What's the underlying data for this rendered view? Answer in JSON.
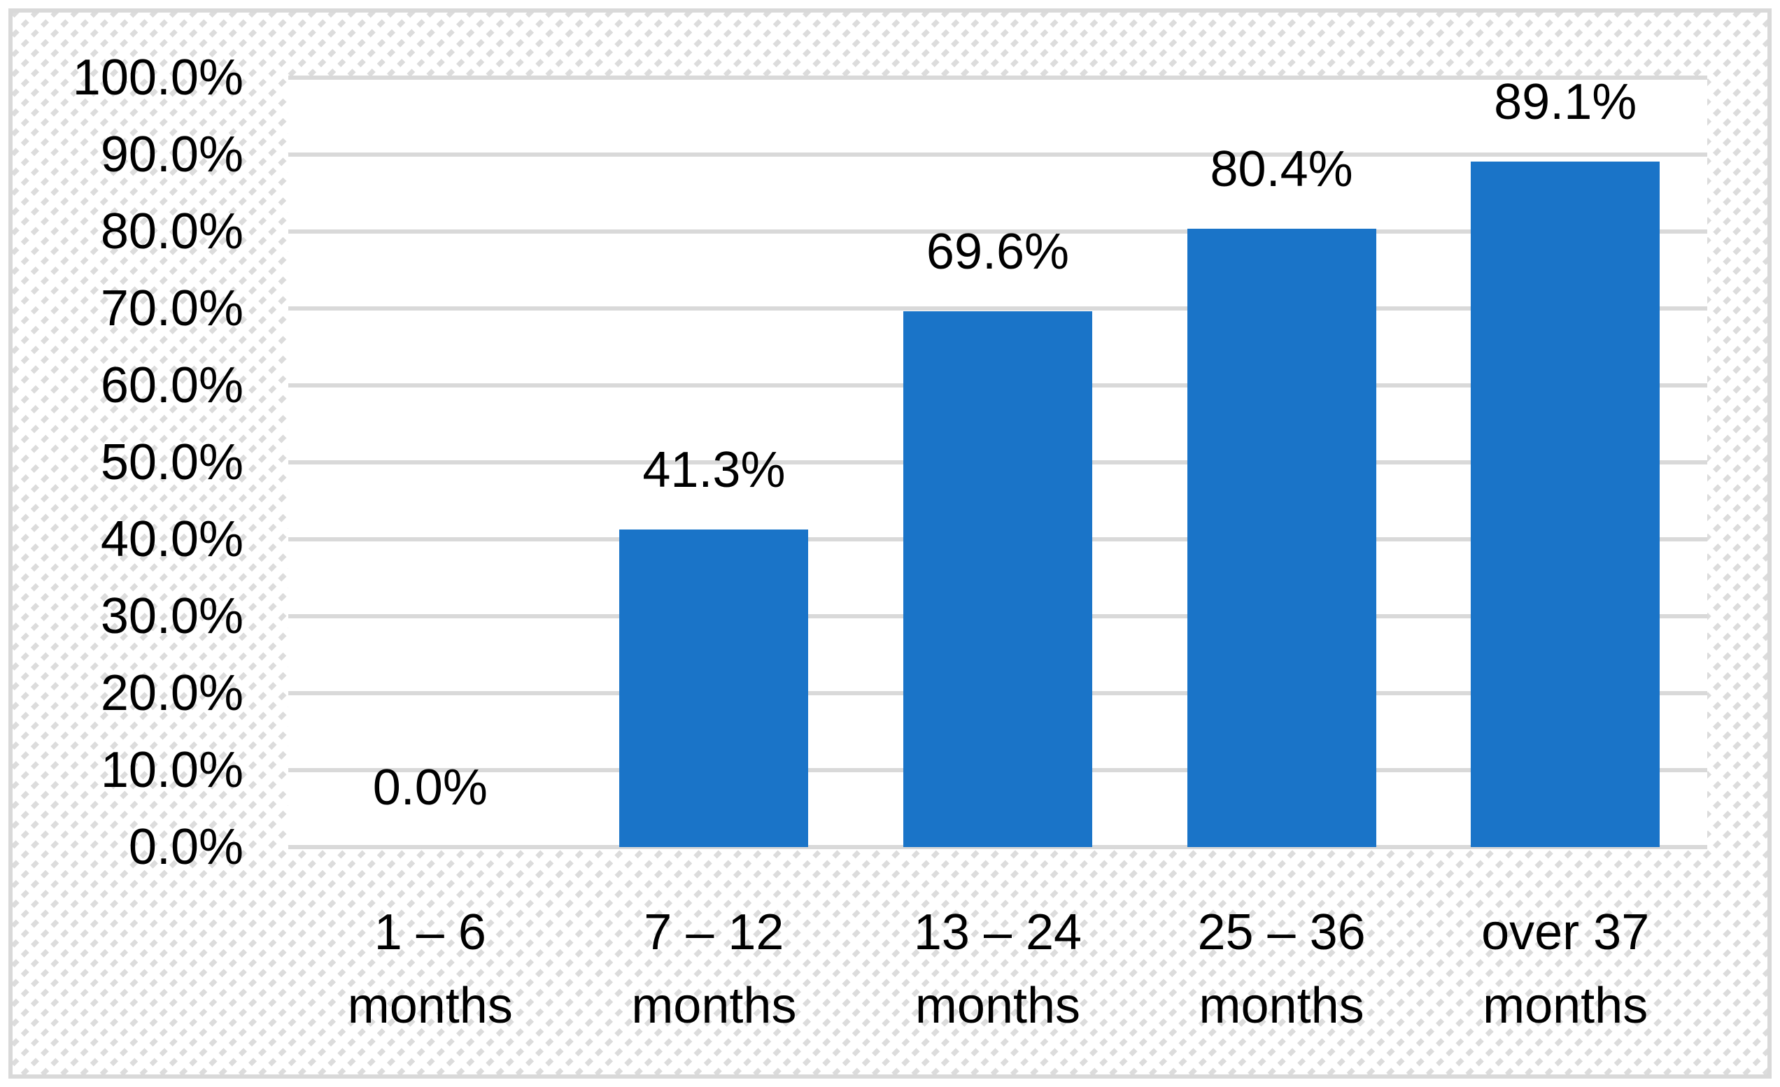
{
  "chart_data": {
    "type": "bar",
    "title": "",
    "xlabel": "",
    "ylabel": "",
    "categories": [
      "1 – 6 months",
      "7 – 12 months",
      "13 – 24 months",
      "25 – 36 months",
      "over 37 months"
    ],
    "values": [
      0.0,
      41.3,
      69.6,
      80.4,
      89.1
    ],
    "data_labels": [
      "0.0%",
      "41.3%",
      "69.6%",
      "80.4%",
      "89.1%"
    ],
    "y_ticks": [
      "0.0%",
      "10.0%",
      "20.0%",
      "30.0%",
      "40.0%",
      "50.0%",
      "60.0%",
      "70.0%",
      "80.0%",
      "90.0%",
      "100.0%"
    ],
    "ylim": [
      0,
      100
    ],
    "grid": true,
    "legend_position": "none",
    "colors": {
      "bar": "#1A74C8",
      "gridline": "#D9D9D9",
      "frame_border": "#D9D9D9",
      "text": "#000000"
    }
  }
}
